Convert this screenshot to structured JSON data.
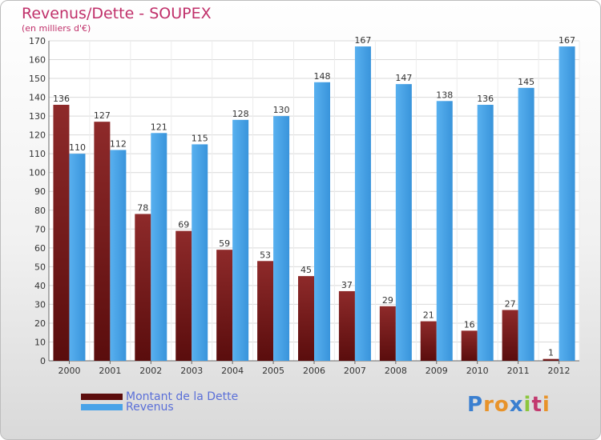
{
  "title": "Revenus/Dette - SOUPEX",
  "subtitle": "(en milliers d'€)",
  "legend": {
    "debt_label": "Montant de la Dette",
    "revenue_label": "Revenus"
  },
  "logo": {
    "letters": [
      "P",
      "r",
      "o",
      "x",
      "i",
      "t",
      "i"
    ],
    "colors": [
      "#3a7fd0",
      "#e8932a",
      "#e8932a",
      "#3a7fd0",
      "#8cc63e",
      "#c23a6f",
      "#e8932a"
    ]
  },
  "colors": {
    "debt": "#7a1a1a",
    "debt_dark": "#5c0d0d",
    "revenue": "#4aa3e8",
    "revenue_dark": "#2f86cc",
    "axis_text": "#333333",
    "grid": "#d9d9d9"
  },
  "chart_data": {
    "type": "bar",
    "categories": [
      "2000",
      "2001",
      "2002",
      "2003",
      "2004",
      "2005",
      "2006",
      "2007",
      "2008",
      "2009",
      "2010",
      "2011",
      "2012"
    ],
    "series": [
      {
        "name": "Montant de la Dette",
        "values": [
          136,
          127,
          78,
          69,
          59,
          53,
          45,
          37,
          29,
          21,
          16,
          27,
          1
        ]
      },
      {
        "name": "Revenus",
        "values": [
          110,
          112,
          121,
          115,
          128,
          130,
          148,
          167,
          147,
          138,
          136,
          145,
          167
        ]
      }
    ],
    "ylim": [
      0,
      170
    ],
    "yticks": [
      0,
      10,
      20,
      30,
      40,
      50,
      60,
      70,
      80,
      90,
      100,
      110,
      120,
      130,
      140,
      150,
      160,
      170
    ],
    "grid": true,
    "legend_position": "bottom-left"
  }
}
